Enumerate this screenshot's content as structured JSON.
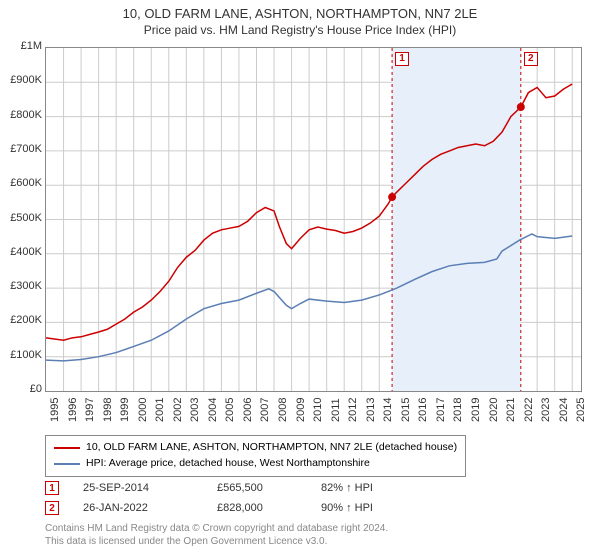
{
  "title": {
    "line1": "10, OLD FARM LANE, ASHTON, NORTHAMPTON, NN7 2LE",
    "line2": "Price paid vs. HM Land Registry's House Price Index (HPI)",
    "fontsize1": 13,
    "fontsize2": 12,
    "color": "#333333"
  },
  "chart": {
    "type": "line",
    "background_color": "#ffffff",
    "border_color": "#888888",
    "grid_color": "#cccccc",
    "x_start": 1995,
    "x_end": 2025.5,
    "xlim_labels": [
      "1995",
      "1996",
      "1997",
      "1998",
      "1999",
      "2000",
      "2001",
      "2002",
      "2003",
      "2004",
      "2005",
      "2006",
      "2007",
      "2008",
      "2009",
      "2010",
      "2011",
      "2012",
      "2013",
      "2014",
      "2015",
      "2016",
      "2017",
      "2018",
      "2019",
      "2020",
      "2021",
      "2022",
      "2023",
      "2024",
      "2025"
    ],
    "ylim": [
      0,
      1000000
    ],
    "ytick_step": 100000,
    "ytick_labels": [
      "£0",
      "£100K",
      "£200K",
      "£300K",
      "£400K",
      "£500K",
      "£600K",
      "£700K",
      "£800K",
      "£900K",
      "£1M"
    ],
    "tick_fontsize": 11,
    "shaded_region": {
      "x_start": 2014.73,
      "x_end": 2022.07,
      "fill_color": "#e6effa",
      "border_color": "#c00000",
      "border_dash": "3,3"
    },
    "series": [
      {
        "name": "property",
        "label": "10, OLD FARM LANE, ASHTON, NORTHAMPTON, NN7 2LE (detached house)",
        "color": "#cc0000",
        "line_width": 1.5,
        "data": [
          [
            1995,
            155000
          ],
          [
            1996,
            148000
          ],
          [
            1996.5,
            155000
          ],
          [
            1997,
            158000
          ],
          [
            1997.5,
            165000
          ],
          [
            1998,
            172000
          ],
          [
            1998.5,
            180000
          ],
          [
            1999,
            195000
          ],
          [
            1999.5,
            210000
          ],
          [
            2000,
            230000
          ],
          [
            2000.5,
            245000
          ],
          [
            2001,
            265000
          ],
          [
            2001.5,
            290000
          ],
          [
            2002,
            320000
          ],
          [
            2002.5,
            360000
          ],
          [
            2003,
            390000
          ],
          [
            2003.5,
            410000
          ],
          [
            2004,
            440000
          ],
          [
            2004.5,
            460000
          ],
          [
            2005,
            470000
          ],
          [
            2005.5,
            475000
          ],
          [
            2006,
            480000
          ],
          [
            2006.5,
            495000
          ],
          [
            2007,
            520000
          ],
          [
            2007.5,
            535000
          ],
          [
            2008,
            525000
          ],
          [
            2008.3,
            480000
          ],
          [
            2008.7,
            430000
          ],
          [
            2009,
            415000
          ],
          [
            2009.5,
            445000
          ],
          [
            2010,
            470000
          ],
          [
            2010.5,
            478000
          ],
          [
            2011,
            472000
          ],
          [
            2011.5,
            468000
          ],
          [
            2012,
            460000
          ],
          [
            2012.5,
            465000
          ],
          [
            2013,
            475000
          ],
          [
            2013.5,
            490000
          ],
          [
            2014,
            510000
          ],
          [
            2014.5,
            545000
          ],
          [
            2014.73,
            565500
          ],
          [
            2015,
            580000
          ],
          [
            2015.5,
            605000
          ],
          [
            2016,
            630000
          ],
          [
            2016.5,
            655000
          ],
          [
            2017,
            675000
          ],
          [
            2017.5,
            690000
          ],
          [
            2018,
            700000
          ],
          [
            2018.5,
            710000
          ],
          [
            2019,
            715000
          ],
          [
            2019.5,
            720000
          ],
          [
            2020,
            715000
          ],
          [
            2020.5,
            728000
          ],
          [
            2021,
            755000
          ],
          [
            2021.5,
            800000
          ],
          [
            2022.07,
            828000
          ],
          [
            2022.5,
            870000
          ],
          [
            2023,
            885000
          ],
          [
            2023.5,
            855000
          ],
          [
            2024,
            860000
          ],
          [
            2024.5,
            880000
          ],
          [
            2025,
            895000
          ]
        ]
      },
      {
        "name": "hpi",
        "label": "HPI: Average price, detached house, West Northamptonshire",
        "color": "#5b7fb5",
        "line_width": 1.5,
        "data": [
          [
            1995,
            90000
          ],
          [
            1996,
            88000
          ],
          [
            1997,
            92000
          ],
          [
            1998,
            100000
          ],
          [
            1999,
            112000
          ],
          [
            2000,
            130000
          ],
          [
            2001,
            148000
          ],
          [
            2002,
            175000
          ],
          [
            2003,
            210000
          ],
          [
            2004,
            240000
          ],
          [
            2005,
            255000
          ],
          [
            2006,
            265000
          ],
          [
            2007,
            285000
          ],
          [
            2007.7,
            298000
          ],
          [
            2008,
            290000
          ],
          [
            2008.7,
            250000
          ],
          [
            2009,
            240000
          ],
          [
            2009.5,
            255000
          ],
          [
            2010,
            268000
          ],
          [
            2011,
            262000
          ],
          [
            2012,
            258000
          ],
          [
            2013,
            265000
          ],
          [
            2014,
            280000
          ],
          [
            2015,
            300000
          ],
          [
            2016,
            325000
          ],
          [
            2017,
            348000
          ],
          [
            2018,
            365000
          ],
          [
            2019,
            372000
          ],
          [
            2020,
            375000
          ],
          [
            2020.7,
            385000
          ],
          [
            2021,
            408000
          ],
          [
            2022,
            440000
          ],
          [
            2022.7,
            458000
          ],
          [
            2023,
            450000
          ],
          [
            2024,
            445000
          ],
          [
            2025,
            452000
          ]
        ]
      }
    ],
    "sale_markers": [
      {
        "id": "1",
        "x": 2014.73,
        "y": 565500,
        "color": "#cc0000",
        "radius": 4,
        "box_x": 2014.73,
        "box_y": 985000
      },
      {
        "id": "2",
        "x": 2022.07,
        "y": 828000,
        "color": "#cc0000",
        "radius": 4,
        "box_x": 2022.07,
        "box_y": 985000
      }
    ]
  },
  "legend": {
    "border_color": "#888888",
    "fontsize": 10.5
  },
  "sale_table": {
    "rows": [
      {
        "marker": "1",
        "date": "25-SEP-2014",
        "price": "£565,500",
        "pct": "82% ↑ HPI",
        "marker_color": "#cc0000"
      },
      {
        "marker": "2",
        "date": "26-JAN-2022",
        "price": "£828,000",
        "pct": "90% ↑ HPI",
        "marker_color": "#cc0000"
      }
    ],
    "fontsize": 11
  },
  "footer": {
    "line1": "Contains HM Land Registry data © Crown copyright and database right 2024.",
    "line2": "This data is licensed under the Open Government Licence v3.0.",
    "fontsize": 10,
    "color": "#888888"
  }
}
